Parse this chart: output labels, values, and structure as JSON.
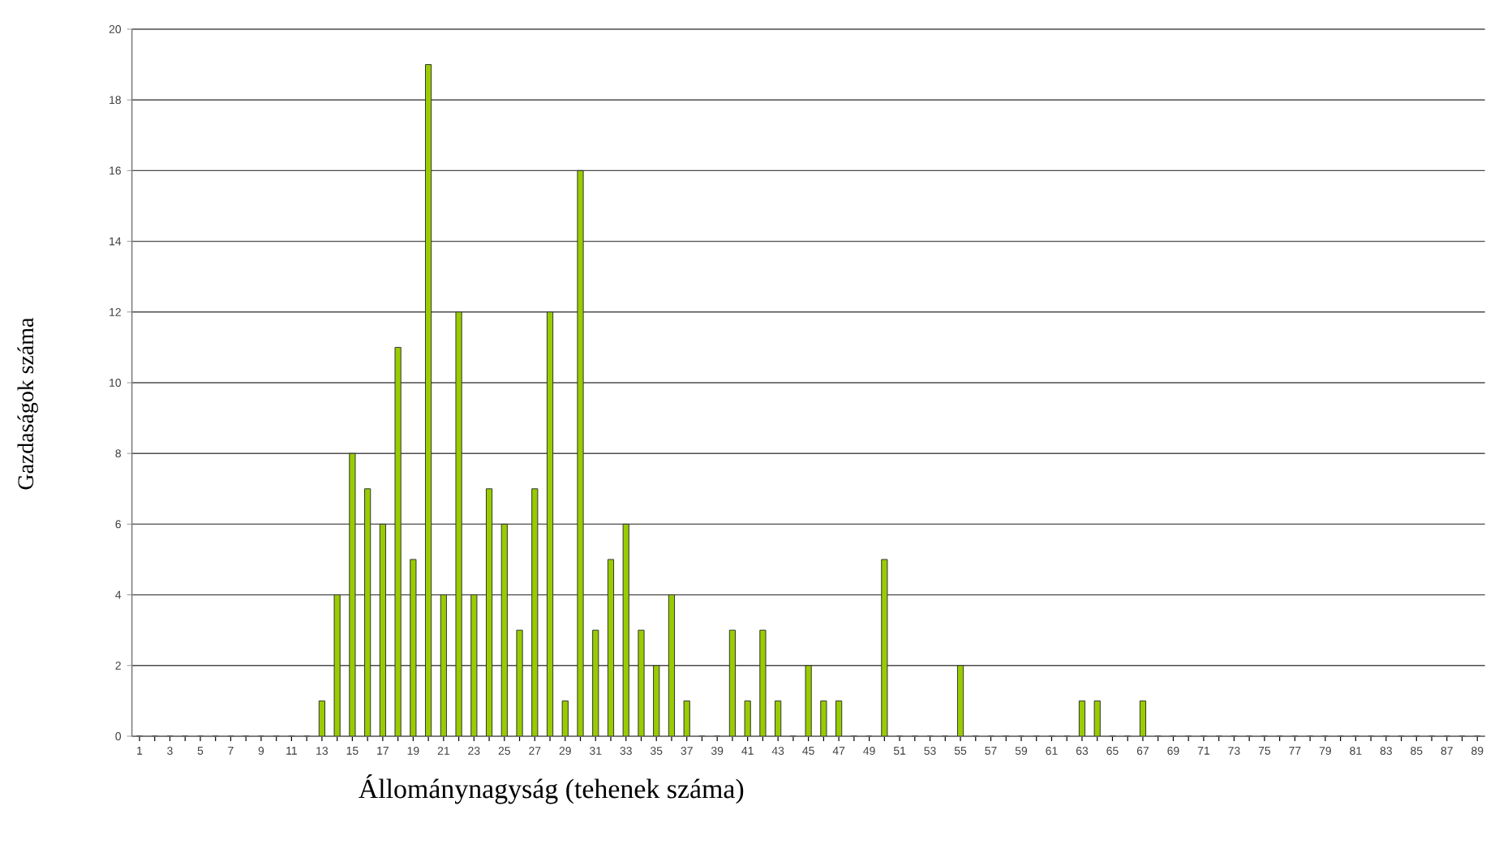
{
  "chart_data": {
    "type": "bar",
    "xlabel": "Állománynagyság (tehenek száma)",
    "ylabel": "Gazdaságok száma",
    "categories": [
      "1",
      null,
      "3",
      null,
      "5",
      null,
      "7",
      null,
      "9",
      null,
      "11",
      null,
      "13",
      null,
      "15",
      null,
      "17",
      null,
      "19",
      null,
      "21",
      null,
      "23",
      null,
      "25",
      null,
      "27",
      null,
      "29",
      null,
      "31",
      null,
      "33",
      null,
      "35",
      null,
      "37",
      null,
      "39",
      null,
      "41",
      null,
      "43",
      null,
      "45",
      null,
      "47",
      null,
      "49",
      null,
      "51",
      null,
      "53",
      null,
      "55",
      null,
      "57",
      null,
      "59",
      null,
      "61",
      null,
      "63",
      null,
      "65",
      null,
      "67",
      null,
      "69",
      null,
      "71",
      null,
      "73",
      null,
      "75",
      null,
      "77",
      null,
      "79",
      null,
      "81",
      null,
      "83",
      null,
      "85",
      null,
      "87",
      null,
      "89"
    ],
    "values": [
      0,
      0,
      0,
      0,
      0,
      0,
      0,
      0,
      0,
      0,
      0,
      0,
      1,
      4,
      8,
      7,
      6,
      11,
      5,
      19,
      4,
      12,
      4,
      7,
      6,
      3,
      7,
      12,
      1,
      16,
      3,
      5,
      6,
      3,
      2,
      4,
      1,
      0,
      0,
      3,
      1,
      3,
      1,
      0,
      2,
      1,
      1,
      0,
      0,
      5,
      0,
      0,
      0,
      0,
      2,
      0,
      0,
      0,
      0,
      0,
      0,
      0,
      1,
      1,
      0,
      0,
      1,
      0,
      0,
      0,
      0,
      0,
      0,
      0,
      0,
      0,
      0,
      0,
      0,
      0,
      0,
      0,
      0,
      0,
      0,
      0,
      0,
      0,
      0
    ],
    "color": "#99cc00",
    "ylim": [
      0,
      20
    ],
    "yticks": [
      0,
      2,
      4,
      6,
      8,
      10,
      12,
      14,
      16,
      18,
      20
    ],
    "grid": "y"
  }
}
